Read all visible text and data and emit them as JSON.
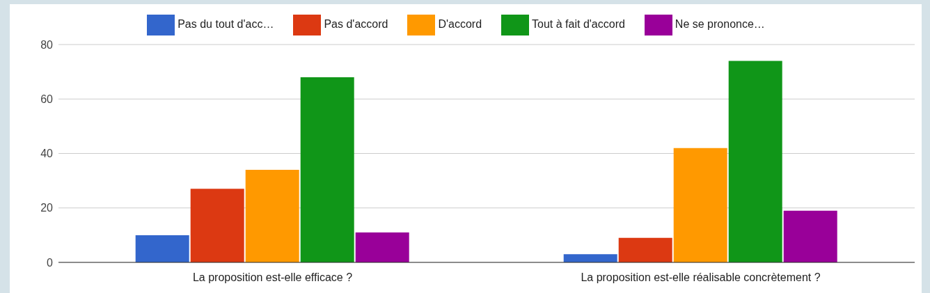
{
  "chart_data": {
    "type": "bar",
    "categories": [
      "La proposition est-elle efficace ?",
      "La proposition est-elle réalisable concrètement ?"
    ],
    "series": [
      {
        "name": "Pas du tout d'acc…",
        "color": "#3366cc",
        "values": [
          10,
          3
        ]
      },
      {
        "name": "Pas d'accord",
        "color": "#dc3912",
        "values": [
          27,
          9
        ]
      },
      {
        "name": "D'accord",
        "color": "#ff9900",
        "values": [
          34,
          42
        ]
      },
      {
        "name": "Tout à fait d'accord",
        "color": "#109618",
        "values": [
          68,
          74
        ]
      },
      {
        "name": "Ne se prononce…",
        "color": "#990099",
        "values": [
          11,
          19
        ]
      }
    ],
    "ylim": [
      0,
      80
    ],
    "yticks": [
      0,
      20,
      40,
      60,
      80
    ],
    "grid": "y",
    "legend": "top"
  }
}
